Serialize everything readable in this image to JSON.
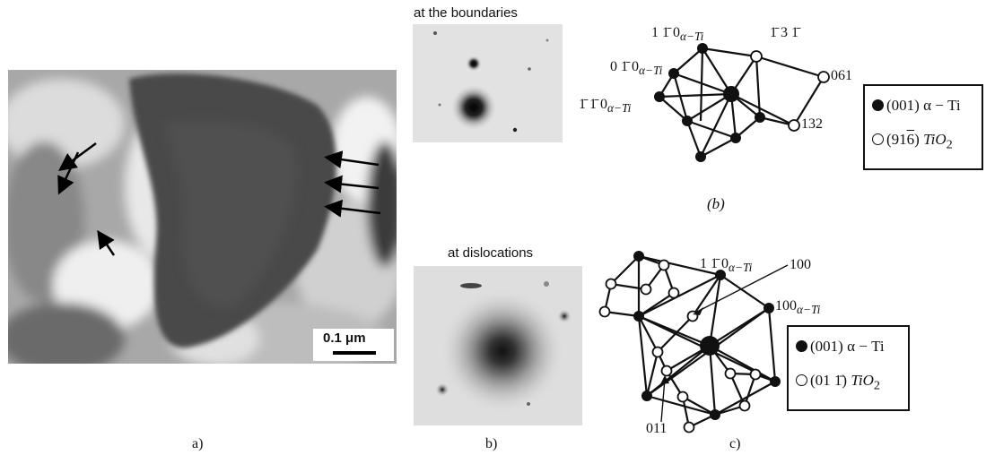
{
  "panel_a": {
    "scale_bar_label": "0.1 μm",
    "caption": "a)"
  },
  "panel_b": {
    "pattern_title": "at the boundaries",
    "reflections": {
      "r1": "1 1̄ 0",
      "r2": "0 1̄ 0",
      "r3": "1̄ 1̄ 0",
      "r4": "1̄ 3 1̄",
      "r5": "061",
      "r6": "132"
    },
    "phase_suffix": "α−Ti",
    "legend": {
      "filled": "(001) α − Ti",
      "open_index": "(91",
      "open_index_bar": "6",
      "open_index_close": ")",
      "open_phase": "TiO",
      "open_sub": "2"
    },
    "diagram_caption": "(b)",
    "caption": "b)"
  },
  "panel_c": {
    "pattern_title": "at dislocations",
    "reflections": {
      "r1": "1 1̄ 0",
      "r2": "100",
      "r3": "100",
      "r4": "011"
    },
    "phase_suffix": "α−Ti",
    "legend": {
      "filled": "(001) α − Ti",
      "open_index": "(01 1̄)",
      "open_phase": "TiO",
      "open_sub": "2"
    },
    "caption": "c)"
  }
}
